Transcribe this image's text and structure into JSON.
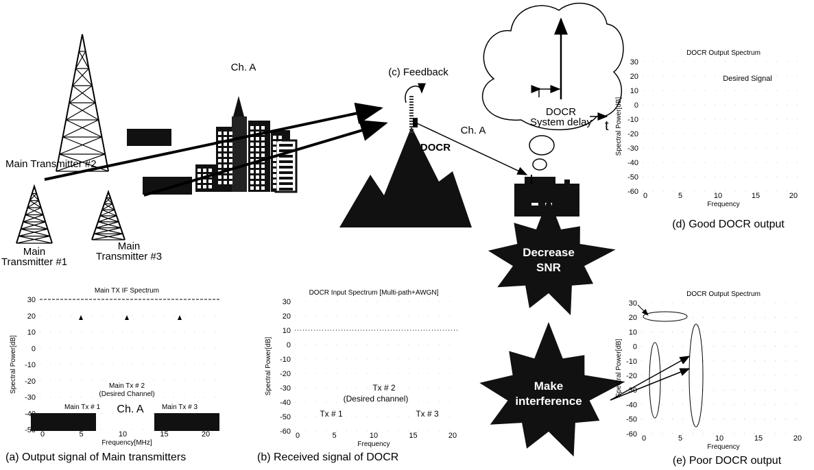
{
  "scene": {
    "tx2": "Main Transmitter #2",
    "tx1": [
      "Main",
      "Transmitter #1"
    ],
    "tx3": [
      "Main",
      "Transmitter #3"
    ],
    "channel_left": "Ch. A",
    "feedback": "(c) Feedback",
    "docr": "DOCR",
    "channel_right": "Ch. A",
    "delay": [
      "DOCR",
      "System delay"
    ],
    "time": "t",
    "decrease": [
      "Decrease",
      "SNR"
    ],
    "interference": [
      "Make",
      "interference"
    ]
  },
  "panels": [
    {
      "title": "Main TX IF Spectrum",
      "ylabel": "Spectral Power[dB]",
      "xlabel": "Frequency[MHz]",
      "yticks": [
        30,
        20,
        10,
        0,
        -10,
        -20,
        -30,
        -40,
        -50
      ],
      "xticks": [
        0,
        5,
        10,
        15,
        20
      ],
      "annotations": [
        "Main Tx # 2",
        "(Desired Channel)",
        "Main Tx # 1",
        "Ch. A",
        "Main Tx # 3"
      ],
      "caption": "(a) Output signal of Main transmitters"
    },
    {
      "title": "DOCR Input Spectrum [Multi-path+AWGN]",
      "ylabel": "Spectral Power[dB]",
      "xlabel": "Frequency",
      "yticks": [
        30,
        20,
        10,
        0,
        -10,
        -20,
        -30,
        -40,
        -50,
        -60
      ],
      "xticks": [
        0,
        5,
        10,
        15,
        20
      ],
      "annotations": [
        "Tx # 2",
        "(Desired channel)",
        "Tx # 1",
        "Tx # 3"
      ],
      "caption": "(b) Received signal of DOCR"
    },
    {
      "title": "DOCR Output Spectrum",
      "ylabel": "Spectral Power[dB]",
      "xlabel": "Frequency",
      "yticks": [
        30,
        20,
        10,
        0,
        -10,
        -20,
        -30,
        -40,
        -50,
        -60
      ],
      "xticks": [
        0,
        5,
        10,
        15,
        20
      ],
      "annotations": [
        "Desired Signal"
      ],
      "caption": "(d) Good DOCR output"
    },
    {
      "title": "DOCR Output Spectrum",
      "ylabel": "Spectral Power[dB]",
      "xlabel": "Frequency",
      "yticks": [
        30,
        20,
        10,
        0,
        -10,
        -20,
        -30,
        -40,
        -50,
        -60
      ],
      "xticks": [
        0,
        5,
        10,
        15,
        20
      ],
      "annotations": [],
      "caption": "(e) Poor DOCR output"
    }
  ]
}
